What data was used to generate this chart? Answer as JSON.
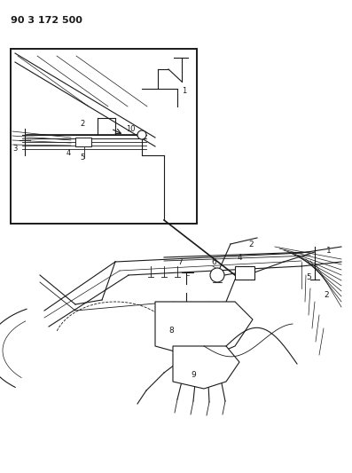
{
  "title": "90 3 172 500",
  "bg": "#ffffff",
  "lc": "#1a1a1a",
  "fig_w": 3.97,
  "fig_h": 5.33,
  "dpi": 100
}
